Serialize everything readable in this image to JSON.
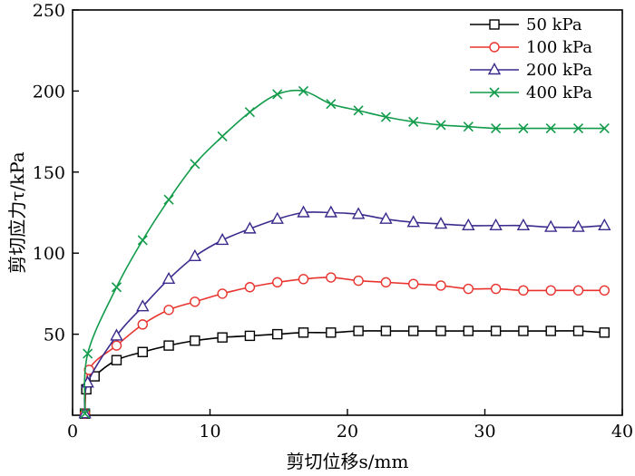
{
  "chart_data": {
    "type": "line",
    "title": "",
    "xlabel": "剪切位移s/mm",
    "ylabel": "剪切应力τ/kPa",
    "xlim": [
      0,
      40
    ],
    "ylim": [
      0,
      250
    ],
    "xticks": [
      0,
      10,
      20,
      30,
      40
    ],
    "yticks": [
      50,
      100,
      150,
      200,
      250
    ],
    "grid": false,
    "legend_position": "top-right",
    "series": [
      {
        "name": "50 kPa",
        "color": "#000000",
        "marker": "square",
        "points": [
          [
            0.9,
            1
          ],
          [
            1.0,
            16
          ],
          [
            1.6,
            24
          ],
          [
            3.2,
            34
          ],
          [
            5.1,
            39
          ],
          [
            7.0,
            43
          ],
          [
            8.9,
            46
          ],
          [
            10.9,
            48
          ],
          [
            12.9,
            49
          ],
          [
            14.9,
            50
          ],
          [
            16.8,
            51
          ],
          [
            18.8,
            51
          ],
          [
            20.8,
            52
          ],
          [
            22.8,
            52
          ],
          [
            24.8,
            52
          ],
          [
            26.8,
            52
          ],
          [
            28.8,
            52
          ],
          [
            30.8,
            52
          ],
          [
            32.8,
            52
          ],
          [
            34.8,
            52
          ],
          [
            36.8,
            52
          ],
          [
            38.7,
            51
          ]
        ]
      },
      {
        "name": "100 kPa",
        "color": "#e8332e",
        "marker": "circle",
        "points": [
          [
            0.9,
            1
          ],
          [
            1.2,
            28
          ],
          [
            3.2,
            43
          ],
          [
            5.1,
            56
          ],
          [
            7.0,
            65
          ],
          [
            8.9,
            70
          ],
          [
            10.9,
            75
          ],
          [
            12.9,
            79
          ],
          [
            14.9,
            82
          ],
          [
            16.8,
            84
          ],
          [
            18.8,
            85
          ],
          [
            20.8,
            83
          ],
          [
            22.8,
            82
          ],
          [
            24.8,
            81
          ],
          [
            26.8,
            80
          ],
          [
            28.8,
            78
          ],
          [
            30.8,
            78
          ],
          [
            32.8,
            77
          ],
          [
            34.8,
            77
          ],
          [
            36.8,
            77
          ],
          [
            38.7,
            77
          ]
        ]
      },
      {
        "name": "200 kPa",
        "color": "#3c2a8c",
        "marker": "triangle",
        "points": [
          [
            0.9,
            1
          ],
          [
            1.1,
            20
          ],
          [
            3.2,
            49
          ],
          [
            5.1,
            67
          ],
          [
            7.0,
            84
          ],
          [
            8.9,
            98
          ],
          [
            10.9,
            108
          ],
          [
            12.9,
            115
          ],
          [
            14.9,
            121
          ],
          [
            16.8,
            125
          ],
          [
            18.8,
            125
          ],
          [
            20.8,
            124
          ],
          [
            22.8,
            121
          ],
          [
            24.8,
            119
          ],
          [
            26.8,
            118
          ],
          [
            28.8,
            117
          ],
          [
            30.8,
            117
          ],
          [
            32.8,
            117
          ],
          [
            34.8,
            116
          ],
          [
            36.8,
            116
          ],
          [
            38.7,
            117
          ]
        ]
      },
      {
        "name": "400 kPa",
        "color": "#119b4a",
        "marker": "x",
        "points": [
          [
            0.9,
            1
          ],
          [
            1.1,
            38
          ],
          [
            3.2,
            79
          ],
          [
            5.1,
            108
          ],
          [
            7.0,
            133
          ],
          [
            8.9,
            155
          ],
          [
            10.9,
            172
          ],
          [
            12.9,
            187
          ],
          [
            14.9,
            198
          ],
          [
            16.8,
            200
          ],
          [
            18.8,
            192
          ],
          [
            20.8,
            188
          ],
          [
            22.8,
            184
          ],
          [
            24.8,
            181
          ],
          [
            26.8,
            179
          ],
          [
            28.8,
            178
          ],
          [
            30.8,
            177
          ],
          [
            32.8,
            177
          ],
          [
            34.8,
            177
          ],
          [
            36.8,
            177
          ],
          [
            38.7,
            177
          ]
        ]
      }
    ]
  }
}
